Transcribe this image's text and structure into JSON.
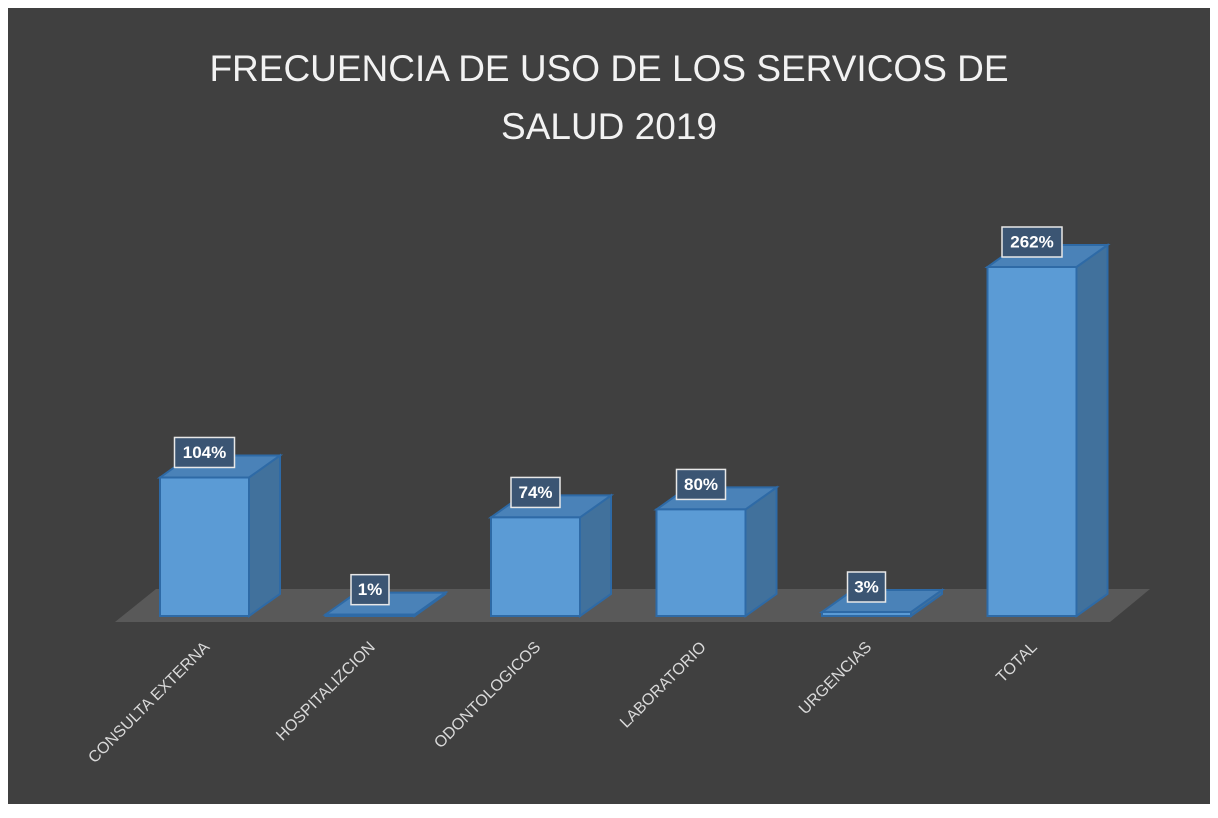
{
  "chart_data": {
    "type": "bar3d",
    "title": "FRECUENCIA DE USO DE LOS SERVICOS DE SALUD 2019",
    "categories": [
      "CONSULTA EXTERNA",
      "HOSPITALIZCION",
      "ODONTOLOGICOS",
      "LABORATORIO",
      "URGENCIAS",
      "TOTAL"
    ],
    "values": [
      104,
      1,
      74,
      80,
      3,
      262
    ],
    "value_labels": [
      "104%",
      "1%",
      "74%",
      "80%",
      "3%",
      "262%"
    ],
    "color": "#5b9bd5"
  }
}
